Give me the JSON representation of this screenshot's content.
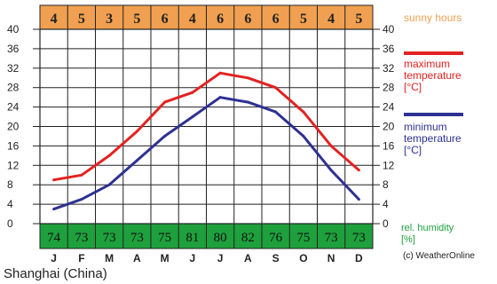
{
  "chart_data": {
    "type": "line",
    "location_caption": "Shanghai (China)",
    "categories": [
      "J",
      "F",
      "M",
      "A",
      "M",
      "J",
      "J",
      "A",
      "S",
      "O",
      "N",
      "D"
    ],
    "series": [
      {
        "name": "maximum temperature [°C]",
        "color": "#e32221",
        "values": [
          9,
          10,
          14,
          19,
          25,
          27,
          31,
          30,
          28,
          23,
          16,
          11
        ]
      },
      {
        "name": "minimum temperature [°C]",
        "color": "#2e3192",
        "values": [
          3,
          5,
          8,
          13,
          18,
          22,
          26,
          25,
          23,
          18,
          11,
          5
        ]
      }
    ],
    "sunny_hours": {
      "label": "sunny hours",
      "values": [
        "4",
        "5",
        "3",
        "5",
        "6",
        "4",
        "6",
        "6",
        "6",
        "5",
        "4",
        "5"
      ]
    },
    "humidity": {
      "label": "rel. humidity [%]",
      "values": [
        "74",
        "73",
        "73",
        "73",
        "75",
        "81",
        "80",
        "82",
        "76",
        "75",
        "73",
        "73"
      ]
    },
    "yticks": [
      "0",
      "4",
      "8",
      "12",
      "16",
      "20",
      "24",
      "28",
      "32",
      "36",
      "40"
    ],
    "ylim": [
      0,
      40
    ],
    "grid": true,
    "copyright": "(c) WeatherOnline",
    "colors": {
      "sun_band": "#f0a050",
      "sun_label": "#f0a050",
      "humidity_band": "#1ea03c",
      "humidity_label": "#1ea03c",
      "max_label": "#e32221",
      "min_label": "#2e3192"
    }
  }
}
